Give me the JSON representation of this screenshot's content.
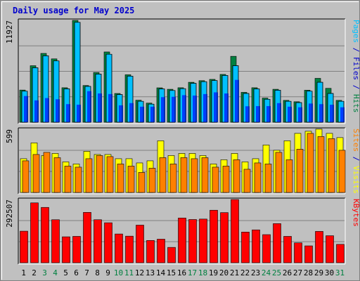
{
  "chart_data": {
    "type": "bar",
    "title": "Daily usage for May 2025",
    "categories": [
      "1",
      "2",
      "3",
      "4",
      "5",
      "6",
      "7",
      "8",
      "9",
      "10",
      "11",
      "12",
      "13",
      "14",
      "15",
      "16",
      "17",
      "18",
      "19",
      "20",
      "21",
      "22",
      "23",
      "24",
      "25",
      "26",
      "27",
      "28",
      "29",
      "30",
      "31"
    ],
    "weekend_days": [
      "3",
      "4",
      "10",
      "11",
      "17",
      "18",
      "24",
      "25",
      "31"
    ],
    "colors": {
      "hits": "#008040",
      "files": "#00c0ff",
      "pages": "#0040ff",
      "visits": "#ffff00",
      "sites": "#ff8000",
      "kbytes": "#ff0000",
      "title": "#0000cc",
      "weekday_label": "#000000",
      "weekend_label": "#008040",
      "panel_bg": "#c0c0c0",
      "grid": "#808080"
    },
    "panels": [
      {
        "name": "usage",
        "ymax": 11927,
        "tick_label": "11927",
        "ylabel_parts": [
          {
            "text": "Pages",
            "color": "#00c0ff"
          },
          {
            "text": " / ",
            "color": "#0000cc"
          },
          {
            "text": "Files",
            "color": "#0000cc"
          },
          {
            "text": " / ",
            "color": "#0000cc"
          },
          {
            "text": "Hits",
            "color": "#008040"
          }
        ],
        "series": [
          {
            "name": "Hits",
            "values": [
              3770,
              6620,
              8060,
              7420,
              4040,
              11927,
              4300,
              5830,
              8230,
              3370,
              5560,
              2580,
              2240,
              4030,
              3860,
              4040,
              4680,
              4870,
              5020,
              5600,
              7720,
              3500,
              4040,
              2830,
              3860,
              2560,
              2400,
              3750,
              5140,
              3970,
              2560
            ]
          },
          {
            "name": "Files",
            "values": [
              3640,
              6380,
              7780,
              7180,
              3910,
              11700,
              4200,
              5640,
              7960,
              3240,
              5400,
              2450,
              2120,
              3900,
              3720,
              3930,
              4560,
              4750,
              4880,
              5480,
              6620,
              3370,
              3900,
              2690,
              3750,
              2450,
              2300,
              3640,
              4680,
              3370,
              2450
            ]
          },
          {
            "name": "Pages",
            "values": [
              3070,
              2560,
              2830,
              2690,
              2120,
              2050,
              3640,
              3370,
              3300,
              1980,
              2240,
              1820,
              1820,
              2940,
              2980,
              3170,
              3120,
              3300,
              3500,
              3370,
              4960,
              1870,
              1890,
              1890,
              2240,
              1820,
              1750,
              2190,
              2120,
              2050,
              1750
            ]
          }
        ]
      },
      {
        "name": "visits-sites",
        "ymax": 599,
        "tick_label": "599",
        "ylabel_parts": [
          {
            "text": "Sites",
            "color": "#ff8000"
          },
          {
            "text": " / ",
            "color": "#0000cc"
          },
          {
            "text": "Visits",
            "color": "#ffff00"
          }
        ],
        "series": [
          {
            "name": "Visits",
            "values": [
              320,
              470,
              350,
              370,
              290,
              270,
              390,
              360,
              360,
              320,
              320,
              280,
              300,
              490,
              350,
              370,
              370,
              350,
              270,
              310,
              370,
              290,
              320,
              450,
              400,
              490,
              560,
              580,
              600,
              560,
              520
            ]
          },
          {
            "name": "Sites",
            "values": [
              300,
              360,
              380,
              330,
              250,
              240,
              320,
              350,
              340,
              270,
              250,
              190,
              230,
              330,
              270,
              330,
              320,
              330,
              240,
              250,
              310,
              220,
              280,
              270,
              380,
              310,
              410,
              560,
              530,
              510,
              400
            ]
          }
        ]
      },
      {
        "name": "kbytes",
        "ymax": 292507,
        "tick_label": "292507",
        "ylabel_parts": [
          {
            "text": "KBytes",
            "color": "#ff0000"
          }
        ],
        "series": [
          {
            "name": "KBytes",
            "values": [
              146000,
              277000,
              256000,
              199000,
              120000,
              122000,
              233000,
              199000,
              185000,
              133000,
              123000,
              174000,
              103000,
              109000,
              71000,
              207000,
              200000,
              202000,
              243000,
              232000,
              292507,
              142000,
              152000,
              130000,
              181000,
              122000,
              92000,
              78000,
              145000,
              125000,
              85000
            ]
          }
        ]
      }
    ]
  }
}
